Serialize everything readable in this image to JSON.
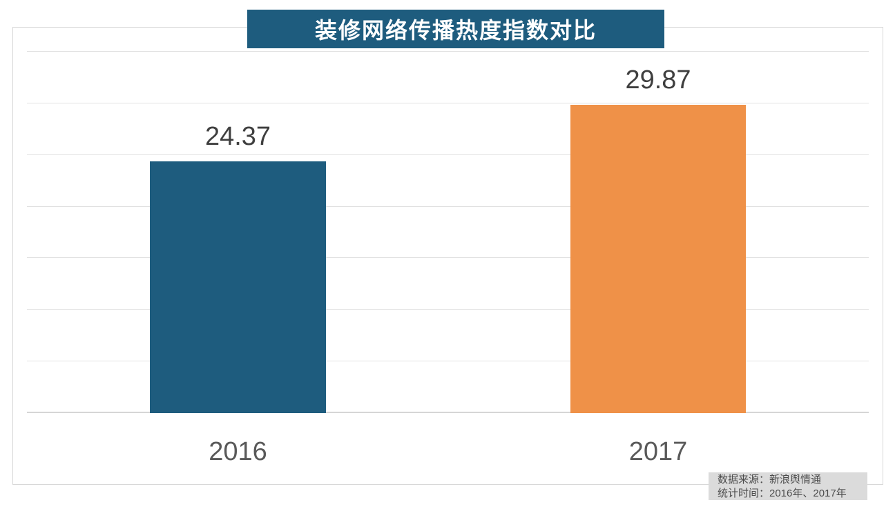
{
  "title": "装修网络传播热度指数对比",
  "chart_data": {
    "type": "bar",
    "title": "装修网络传播热度指数对比",
    "categories": [
      "2016",
      "2017"
    ],
    "values": [
      24.37,
      29.87
    ],
    "bar_colors": [
      "#1E5C7E",
      "#EF9148"
    ],
    "xlabel": "",
    "ylabel": "",
    "ylim": [
      0,
      35
    ],
    "grid_step": 5,
    "grid": "on",
    "legend": "none",
    "y_tick_labels_visible": false
  },
  "source_note": {
    "line1": "数据来源：新浪舆情通",
    "line2": "统计时间：2016年、2017年"
  },
  "colors": {
    "title_bg": "#1E5C7E",
    "title_text": "#FFFFFF",
    "bar_2016": "#1E5C7E",
    "bar_2017": "#EF9148",
    "gridline": "#E1E1E1",
    "frame_border": "#D7D7D7",
    "note_bg": "#DBDBDB",
    "value_label_text": "#3F3F3F",
    "axis_label_text": "#595959"
  }
}
